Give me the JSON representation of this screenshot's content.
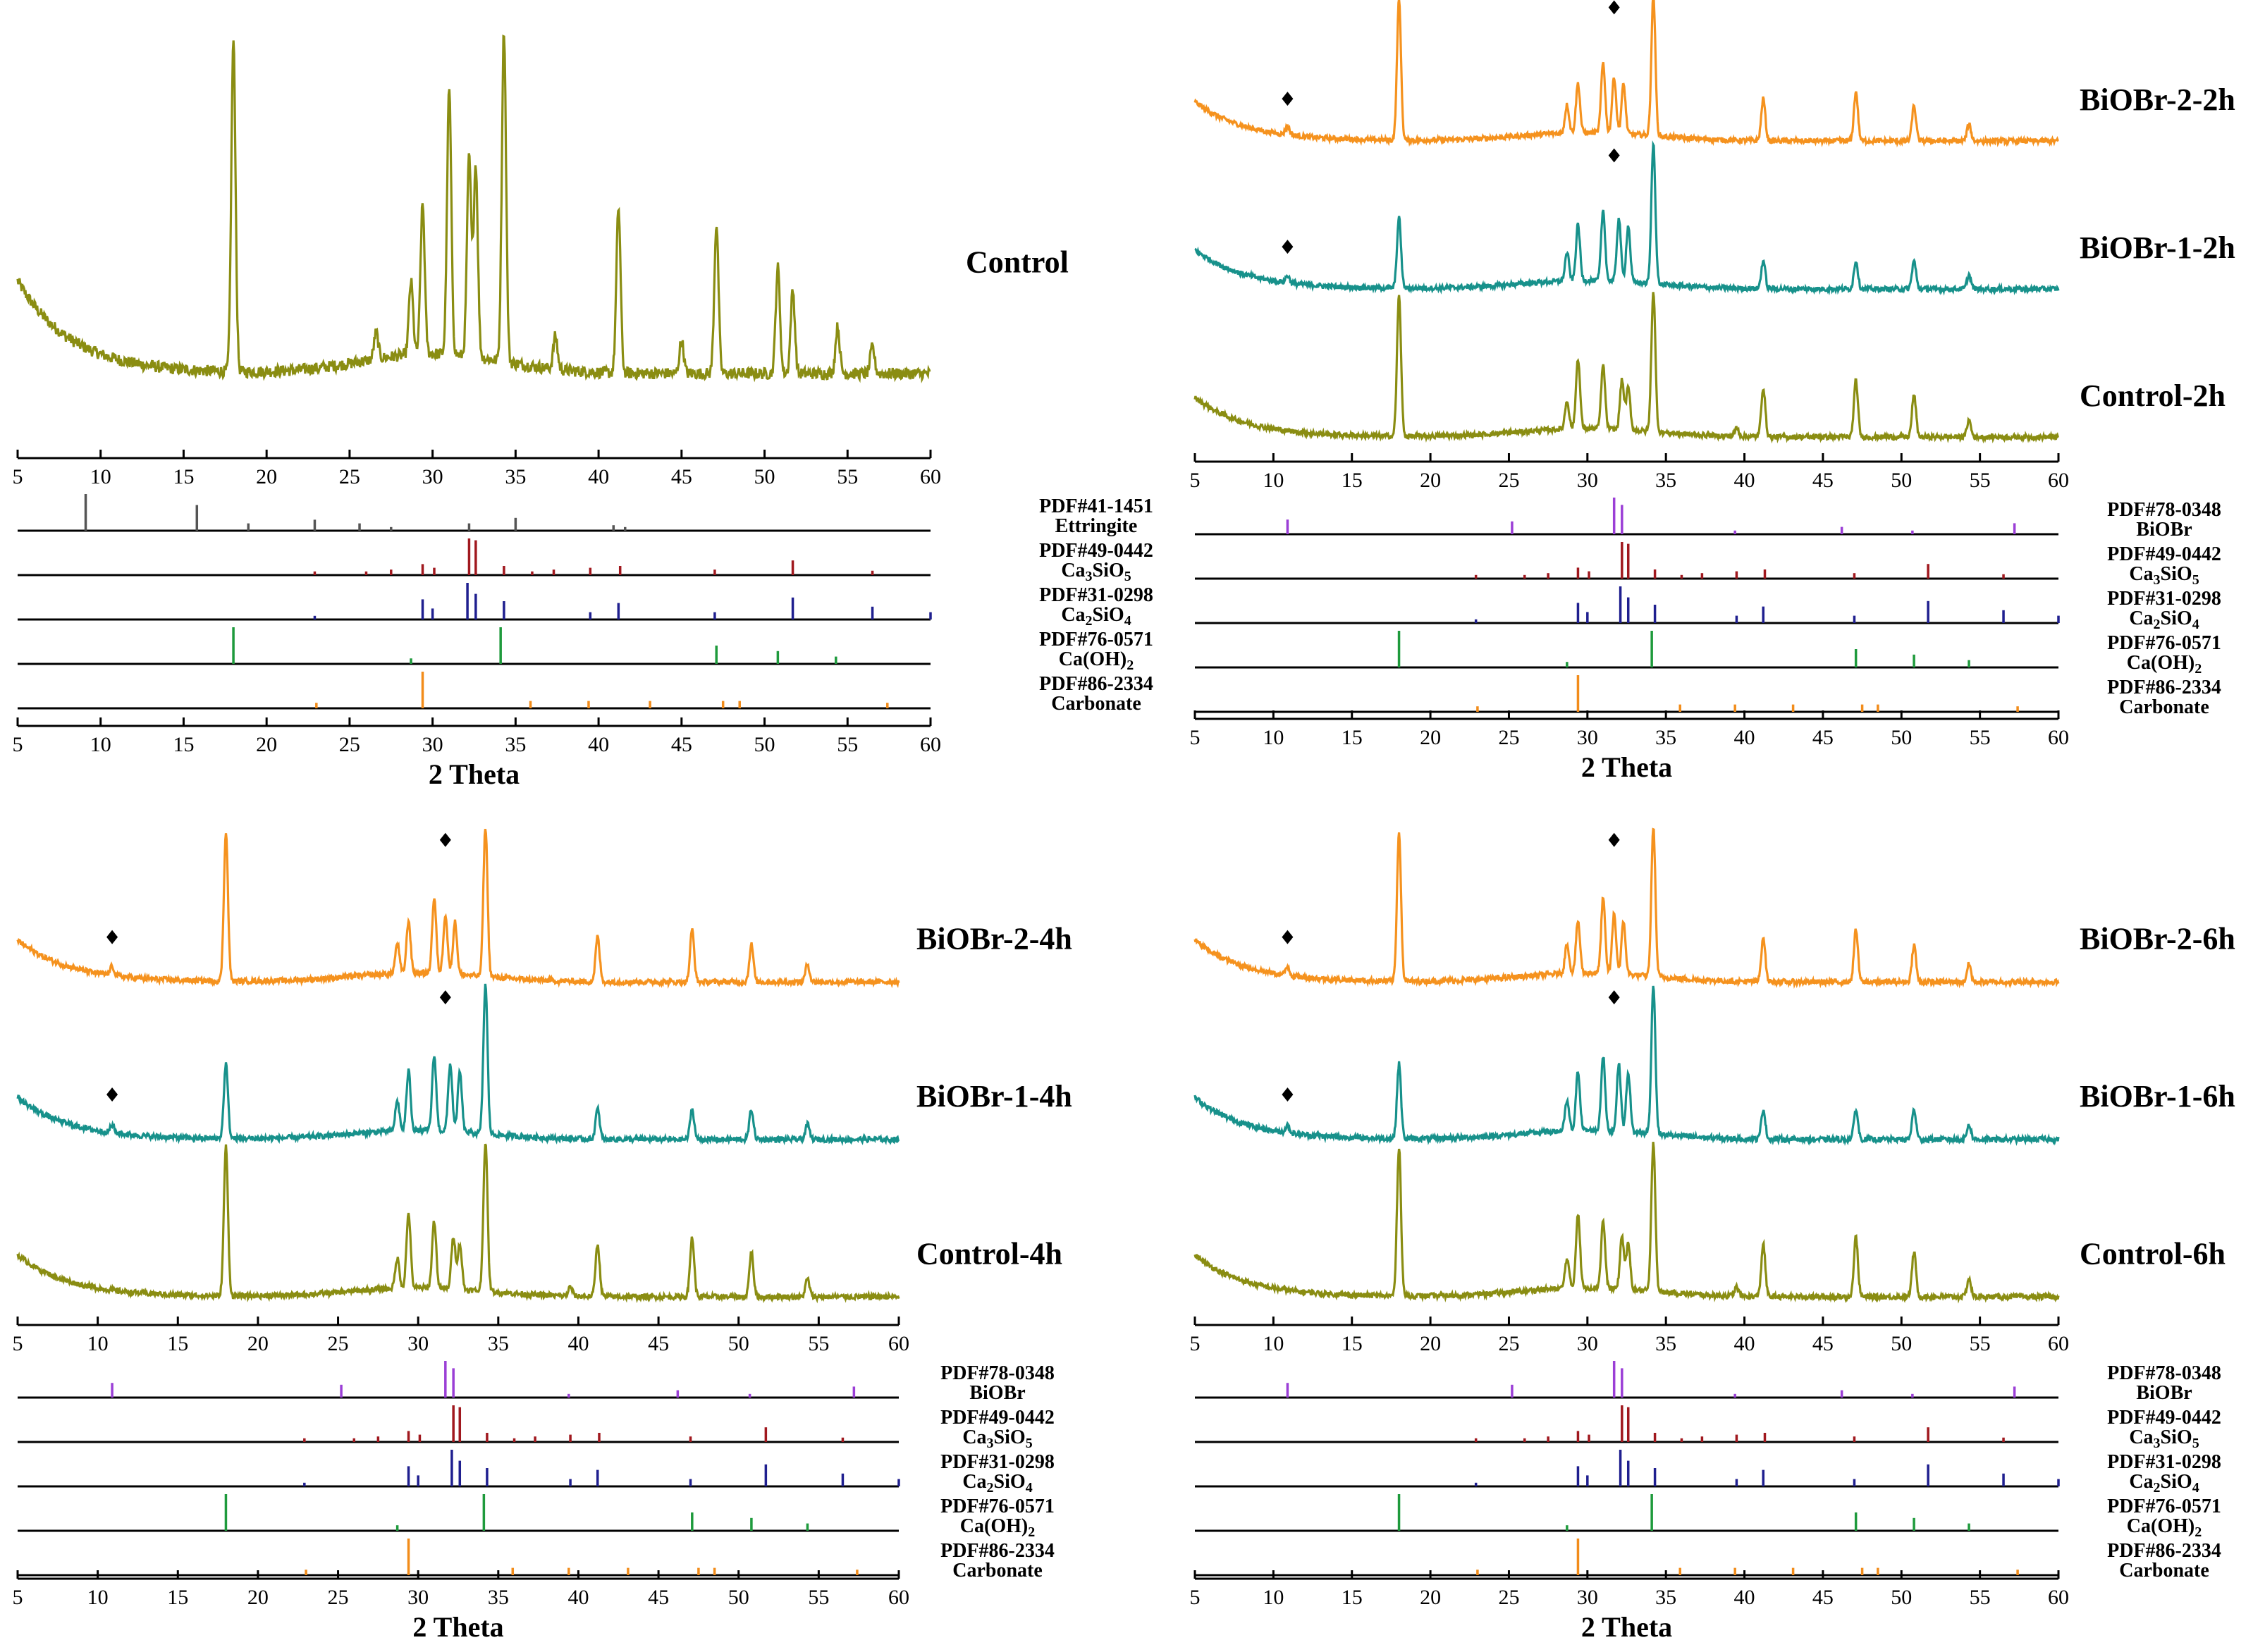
{
  "chart_data": [
    {
      "type": "line",
      "panel": "top-left",
      "xlabel": "2 Theta",
      "xlim": [
        5,
        60
      ],
      "xticks": [
        5,
        10,
        15,
        20,
        25,
        30,
        35,
        40,
        45,
        50,
        55,
        60
      ],
      "series": [
        {
          "name": "Control",
          "color": "#8a8d12",
          "peaks": [
            [
              18.0,
              1.0
            ],
            [
              29.4,
              0.45
            ],
            [
              31.0,
              0.8
            ],
            [
              32.2,
              0.6
            ],
            [
              32.6,
              0.58
            ],
            [
              34.3,
              1.0
            ],
            [
              28.7,
              0.22
            ],
            [
              37.4,
              0.1
            ],
            [
              41.2,
              0.5
            ],
            [
              47.1,
              0.45
            ],
            [
              50.8,
              0.32
            ],
            [
              51.7,
              0.25
            ],
            [
              54.4,
              0.14
            ],
            [
              56.5,
              0.08
            ],
            [
              45.0,
              0.1
            ],
            [
              26.6,
              0.08
            ]
          ]
        }
      ],
      "references": [
        {
          "pdf": "PDF#41-1451",
          "phase": "Ettringite",
          "color": "#555555",
          "lines": [
            [
              9.1,
              1.0
            ],
            [
              15.8,
              0.7
            ],
            [
              18.9,
              0.2
            ],
            [
              22.9,
              0.3
            ],
            [
              25.6,
              0.2
            ],
            [
              27.5,
              0.1
            ],
            [
              32.2,
              0.2
            ],
            [
              35.0,
              0.35
            ],
            [
              40.9,
              0.15
            ],
            [
              41.6,
              0.1
            ]
          ]
        },
        {
          "pdf": "PDF#49-0442",
          "phase": "Ca3SiO5",
          "color": "#a0181e",
          "lines": [
            [
              32.2,
              1.0
            ],
            [
              32.6,
              0.95
            ],
            [
              34.3,
              0.25
            ],
            [
              29.4,
              0.3
            ],
            [
              30.1,
              0.2
            ],
            [
              36.0,
              0.1
            ],
            [
              37.3,
              0.15
            ],
            [
              39.5,
              0.2
            ],
            [
              41.3,
              0.25
            ],
            [
              47.0,
              0.15
            ],
            [
              51.7,
              0.4
            ],
            [
              56.5,
              0.12
            ],
            [
              22.9,
              0.1
            ],
            [
              26.0,
              0.1
            ],
            [
              27.5,
              0.15
            ]
          ]
        },
        {
          "pdf": "PDF#31-0298",
          "phase": "Ca2SiO4",
          "color": "#1f1f8f",
          "lines": [
            [
              32.1,
              1.0
            ],
            [
              32.6,
              0.7
            ],
            [
              29.4,
              0.55
            ],
            [
              30.0,
              0.3
            ],
            [
              34.3,
              0.5
            ],
            [
              41.2,
              0.45
            ],
            [
              39.5,
              0.2
            ],
            [
              47.0,
              0.2
            ],
            [
              51.7,
              0.6
            ],
            [
              56.5,
              0.35
            ],
            [
              60.0,
              0.2
            ],
            [
              22.9,
              0.1
            ]
          ]
        },
        {
          "pdf": "PDF#76-0571",
          "phase": "Ca(OH)2",
          "color": "#1e9a3c",
          "lines": [
            [
              18.0,
              1.0
            ],
            [
              34.1,
              1.0
            ],
            [
              28.7,
              0.15
            ],
            [
              47.1,
              0.5
            ],
            [
              50.8,
              0.35
            ],
            [
              54.3,
              0.2
            ]
          ]
        },
        {
          "pdf": "PDF#86-2334",
          "phase": "Carbonate",
          "color": "#f28c1a",
          "lines": [
            [
              29.4,
              1.0
            ],
            [
              23.0,
              0.15
            ],
            [
              35.9,
              0.2
            ],
            [
              39.4,
              0.2
            ],
            [
              43.1,
              0.2
            ],
            [
              47.5,
              0.2
            ],
            [
              48.5,
              0.2
            ],
            [
              57.4,
              0.15
            ]
          ]
        }
      ],
      "annotations": []
    },
    {
      "type": "line",
      "panel": "top-right",
      "xlabel": "2 Theta",
      "xlim": [
        5,
        60
      ],
      "xticks": [
        5,
        10,
        15,
        20,
        25,
        30,
        35,
        40,
        45,
        50,
        55,
        60
      ],
      "series": [
        {
          "name": "BiOBr-2-2h",
          "color": "#f5921e"
        },
        {
          "name": "BiOBr-1-2h",
          "color": "#17918b"
        },
        {
          "name": "Control-2h",
          "color": "#8a8d12"
        }
      ],
      "references": [
        {
          "pdf": "PDF#78-0348",
          "phase": "BiOBr",
          "color": "#9b3fd6",
          "lines": [
            [
              10.9,
              0.4
            ],
            [
              25.2,
              0.35
            ],
            [
              31.7,
              1.0
            ],
            [
              32.2,
              0.8
            ],
            [
              39.4,
              0.1
            ],
            [
              46.2,
              0.2
            ],
            [
              50.7,
              0.1
            ],
            [
              57.2,
              0.3
            ]
          ]
        },
        {
          "pdf": "PDF#49-0442",
          "phase": "Ca3SiO5"
        },
        {
          "pdf": "PDF#31-0298",
          "phase": "Ca2SiO4"
        },
        {
          "pdf": "PDF#76-0571",
          "phase": "Ca(OH)2"
        },
        {
          "pdf": "PDF#86-2334",
          "phase": "Carbonate"
        }
      ],
      "annotations": [
        "◆ BiOBr peak at ~10.9°",
        "◆ BiOBr peak at ~31.7°"
      ]
    },
    {
      "type": "line",
      "panel": "bottom-left",
      "xlabel": "2 Theta",
      "xlim": [
        5,
        60
      ],
      "xticks": [
        5,
        10,
        15,
        20,
        25,
        30,
        35,
        40,
        45,
        50,
        55,
        60
      ],
      "series": [
        {
          "name": "BiOBr-2-4h",
          "color": "#f5921e"
        },
        {
          "name": "BiOBr-1-4h",
          "color": "#17918b"
        },
        {
          "name": "Control-4h",
          "color": "#8a8d12"
        }
      ],
      "references": [
        {
          "pdf": "PDF#78-0348",
          "phase": "BiOBr"
        },
        {
          "pdf": "PDF#49-0442",
          "phase": "Ca3SiO5"
        },
        {
          "pdf": "PDF#31-0298",
          "phase": "Ca2SiO4"
        },
        {
          "pdf": "PDF#76-0571",
          "phase": "Ca(OH)2"
        },
        {
          "pdf": "PDF#86-2334",
          "phase": "Carbonate"
        }
      ],
      "annotations": [
        "◆ BiOBr peak at ~10.9°",
        "◆ BiOBr peak at ~31.7°"
      ]
    },
    {
      "type": "line",
      "panel": "bottom-right",
      "xlabel": "2 Theta",
      "xlim": [
        5,
        60
      ],
      "xticks": [
        5,
        10,
        15,
        20,
        25,
        30,
        35,
        40,
        45,
        50,
        55,
        60
      ],
      "series": [
        {
          "name": "BiOBr-2-6h",
          "color": "#f5921e"
        },
        {
          "name": "BiOBr-1-6h",
          "color": "#17918b"
        },
        {
          "name": "Control-6h",
          "color": "#8a8d12"
        }
      ],
      "references": [
        {
          "pdf": "PDF#78-0348",
          "phase": "BiOBr"
        },
        {
          "pdf": "PDF#49-0442",
          "phase": "Ca3SiO5"
        },
        {
          "pdf": "PDF#31-0298",
          "phase": "Ca2SiO4"
        },
        {
          "pdf": "PDF#76-0571",
          "phase": "Ca(OH)2"
        },
        {
          "pdf": "PDF#86-2334",
          "phase": "Carbonate"
        }
      ],
      "annotations": [
        "◆ BiOBr peak at ~10.9°",
        "◆ BiOBr peak at ~31.7°"
      ]
    }
  ]
}
